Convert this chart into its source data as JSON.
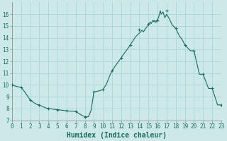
{
  "x_markers": [
    0,
    1,
    2,
    3,
    4,
    5,
    6,
    7,
    8,
    9,
    10,
    11,
    12,
    13,
    14,
    15,
    16,
    17,
    18,
    19,
    20,
    21,
    22,
    23
  ],
  "y_markers": [
    10.0,
    9.8,
    8.7,
    8.3,
    8.0,
    7.9,
    7.8,
    7.75,
    7.3,
    9.4,
    9.6,
    11.2,
    12.3,
    13.4,
    14.7,
    15.2,
    15.5,
    16.3,
    14.8,
    13.4,
    12.9,
    10.9,
    9.7,
    8.3
  ],
  "x_curve": [
    0,
    0.3,
    0.6,
    1,
    1.4,
    1.8,
    2,
    2.4,
    2.8,
    3,
    3.4,
    3.8,
    4,
    4.3,
    4.6,
    5,
    5.3,
    5.6,
    6,
    6.3,
    6.6,
    7,
    7.3,
    7.6,
    8,
    8.4,
    8.7,
    9,
    9.3,
    9.6,
    10,
    10.4,
    10.7,
    11,
    11.3,
    11.6,
    12,
    12.4,
    12.7,
    13,
    13.3,
    13.6,
    14,
    14.15,
    14.3,
    14.45,
    14.6,
    14.75,
    14.9,
    15,
    15.1,
    15.2,
    15.3,
    15.4,
    15.5,
    15.6,
    15.7,
    15.8,
    15.9,
    16,
    16.1,
    16.15,
    16.2,
    16.25,
    16.3,
    16.35,
    16.4,
    16.5,
    16.6,
    16.7,
    16.8,
    16.9,
    17,
    17.3,
    17.6,
    18,
    18.4,
    18.7,
    19,
    19.3,
    19.6,
    20,
    20.3,
    20.6,
    21,
    21.3,
    21.6,
    22,
    22.3,
    22.6,
    23
  ],
  "y_curve": [
    10.0,
    9.92,
    9.85,
    9.8,
    9.4,
    8.95,
    8.7,
    8.5,
    8.32,
    8.3,
    8.15,
    8.02,
    8.0,
    7.97,
    7.93,
    7.9,
    7.87,
    7.84,
    7.8,
    7.78,
    7.77,
    7.75,
    7.6,
    7.45,
    7.3,
    7.3,
    7.85,
    9.4,
    9.45,
    9.5,
    9.6,
    10.1,
    10.7,
    11.2,
    11.55,
    11.87,
    12.3,
    12.75,
    13.05,
    13.4,
    13.75,
    14.1,
    14.4,
    14.52,
    14.65,
    14.5,
    14.7,
    14.85,
    15.0,
    15.05,
    15.2,
    15.35,
    15.2,
    15.35,
    15.5,
    15.35,
    15.5,
    15.3,
    15.45,
    15.55,
    15.7,
    15.85,
    16.0,
    16.15,
    16.3,
    16.15,
    16.0,
    16.1,
    16.2,
    15.95,
    15.7,
    15.85,
    16.0,
    15.6,
    15.1,
    14.8,
    14.15,
    13.85,
    13.4,
    13.15,
    12.9,
    12.9,
    11.9,
    10.9,
    10.9,
    10.3,
    9.7,
    9.7,
    9.0,
    8.3,
    8.3
  ],
  "xlabel": "Humidex (Indice chaleur)",
  "ylim": [
    7,
    17
  ],
  "xlim": [
    0,
    23
  ],
  "yticks": [
    7,
    8,
    9,
    10,
    11,
    12,
    13,
    14,
    15,
    16
  ],
  "xticks": [
    0,
    1,
    2,
    3,
    4,
    5,
    6,
    7,
    8,
    9,
    10,
    11,
    12,
    13,
    14,
    15,
    16,
    17,
    18,
    19,
    20,
    21,
    22,
    23
  ],
  "line_color": "#1a6b5a",
  "bg_color": "#cce8e8",
  "grid_color": "#b0d8d8",
  "tick_label_fontsize": 5.5,
  "xlabel_fontsize": 7.0
}
